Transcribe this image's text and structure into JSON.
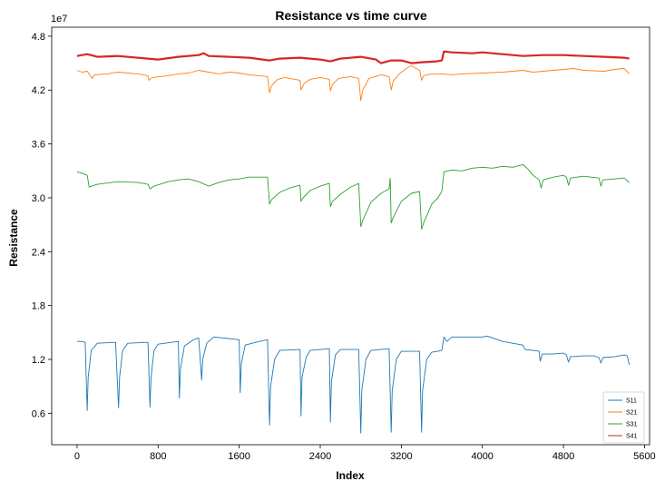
{
  "chart_data": {
    "type": "line",
    "title": "Resistance vs time curve",
    "xlabel": "Index",
    "ylabel": "Resistance",
    "y_offset_label": "1e7",
    "y_scale_factor": 10000000,
    "xlim": [
      -250,
      5650
    ],
    "ylim": [
      0.25,
      4.9
    ],
    "xticks": [
      0,
      800,
      1600,
      2400,
      3200,
      4000,
      4800,
      5600
    ],
    "yticks": [
      0.6,
      1.2,
      1.8,
      2.4,
      3.0,
      3.6,
      4.2,
      4.8
    ],
    "ytick_labels": [
      "0.6",
      "1.2",
      "1.8",
      "2.4",
      "3.0",
      "3.6",
      "4.2",
      "4.8"
    ],
    "grid": false,
    "legend_position": "bottom-right",
    "series": [
      {
        "name": "S11",
        "color": "#1f77b4",
        "linewidth": 0.9,
        "points": [
          [
            0,
            1.4
          ],
          [
            40,
            1.4
          ],
          [
            80,
            1.39
          ],
          [
            100,
            0.63
          ],
          [
            110,
            1.0
          ],
          [
            140,
            1.3
          ],
          [
            200,
            1.38
          ],
          [
            380,
            1.39
          ],
          [
            410,
            0.66
          ],
          [
            420,
            1.0
          ],
          [
            450,
            1.3
          ],
          [
            500,
            1.38
          ],
          [
            700,
            1.39
          ],
          [
            720,
            0.67
          ],
          [
            730,
            1.0
          ],
          [
            760,
            1.3
          ],
          [
            800,
            1.37
          ],
          [
            1000,
            1.4
          ],
          [
            1010,
            0.77
          ],
          [
            1020,
            1.1
          ],
          [
            1060,
            1.35
          ],
          [
            1150,
            1.42
          ],
          [
            1200,
            1.44
          ],
          [
            1230,
            0.97
          ],
          [
            1240,
            1.2
          ],
          [
            1280,
            1.38
          ],
          [
            1350,
            1.45
          ],
          [
            1600,
            1.42
          ],
          [
            1610,
            0.83
          ],
          [
            1620,
            1.15
          ],
          [
            1660,
            1.36
          ],
          [
            1800,
            1.4
          ],
          [
            1880,
            1.42
          ],
          [
            1900,
            0.47
          ],
          [
            1910,
            0.9
          ],
          [
            1950,
            1.2
          ],
          [
            2000,
            1.3
          ],
          [
            2200,
            1.31
          ],
          [
            2210,
            0.57
          ],
          [
            2220,
            1.0
          ],
          [
            2260,
            1.22
          ],
          [
            2300,
            1.3
          ],
          [
            2490,
            1.32
          ],
          [
            2500,
            0.5
          ],
          [
            2510,
            0.95
          ],
          [
            2550,
            1.25
          ],
          [
            2600,
            1.31
          ],
          [
            2780,
            1.31
          ],
          [
            2800,
            0.38
          ],
          [
            2810,
            0.85
          ],
          [
            2850,
            1.2
          ],
          [
            2900,
            1.3
          ],
          [
            3080,
            1.32
          ],
          [
            3100,
            0.39
          ],
          [
            3110,
            0.85
          ],
          [
            3150,
            1.2
          ],
          [
            3200,
            1.29
          ],
          [
            3380,
            1.29
          ],
          [
            3400,
            0.39
          ],
          [
            3410,
            0.85
          ],
          [
            3450,
            1.2
          ],
          [
            3500,
            1.28
          ],
          [
            3560,
            1.29
          ],
          [
            3600,
            1.3
          ],
          [
            3620,
            1.45
          ],
          [
            3650,
            1.4
          ],
          [
            3700,
            1.45
          ],
          [
            4000,
            1.45
          ],
          [
            4050,
            1.46
          ],
          [
            4100,
            1.44
          ],
          [
            4200,
            1.4
          ],
          [
            4300,
            1.38
          ],
          [
            4400,
            1.36
          ],
          [
            4420,
            1.31
          ],
          [
            4500,
            1.3
          ],
          [
            4560,
            1.29
          ],
          [
            4570,
            1.18
          ],
          [
            4590,
            1.26
          ],
          [
            4700,
            1.26
          ],
          [
            4800,
            1.27
          ],
          [
            4830,
            1.25
          ],
          [
            4850,
            1.17
          ],
          [
            4870,
            1.23
          ],
          [
            5000,
            1.24
          ],
          [
            5100,
            1.24
          ],
          [
            5150,
            1.22
          ],
          [
            5170,
            1.16
          ],
          [
            5190,
            1.22
          ],
          [
            5300,
            1.23
          ],
          [
            5400,
            1.25
          ],
          [
            5430,
            1.24
          ],
          [
            5450,
            1.14
          ]
        ]
      },
      {
        "name": "S21",
        "color": "#ff7f0e",
        "linewidth": 0.9,
        "points": [
          [
            0,
            4.42
          ],
          [
            50,
            4.4
          ],
          [
            100,
            4.41
          ],
          [
            150,
            4.33
          ],
          [
            170,
            4.37
          ],
          [
            300,
            4.38
          ],
          [
            400,
            4.4
          ],
          [
            600,
            4.38
          ],
          [
            700,
            4.36
          ],
          [
            710,
            4.31
          ],
          [
            740,
            4.34
          ],
          [
            900,
            4.36
          ],
          [
            1000,
            4.38
          ],
          [
            1100,
            4.39
          ],
          [
            1200,
            4.42
          ],
          [
            1300,
            4.4
          ],
          [
            1400,
            4.38
          ],
          [
            1500,
            4.4
          ],
          [
            1600,
            4.39
          ],
          [
            1700,
            4.37
          ],
          [
            1800,
            4.36
          ],
          [
            1880,
            4.35
          ],
          [
            1900,
            4.17
          ],
          [
            1920,
            4.25
          ],
          [
            1980,
            4.32
          ],
          [
            2050,
            4.34
          ],
          [
            2200,
            4.31
          ],
          [
            2210,
            4.2
          ],
          [
            2240,
            4.27
          ],
          [
            2300,
            4.32
          ],
          [
            2400,
            4.34
          ],
          [
            2490,
            4.32
          ],
          [
            2500,
            4.19
          ],
          [
            2520,
            4.26
          ],
          [
            2580,
            4.33
          ],
          [
            2700,
            4.35
          ],
          [
            2780,
            4.33
          ],
          [
            2800,
            4.08
          ],
          [
            2820,
            4.2
          ],
          [
            2880,
            4.33
          ],
          [
            3000,
            4.37
          ],
          [
            3080,
            4.35
          ],
          [
            3100,
            4.2
          ],
          [
            3120,
            4.3
          ],
          [
            3180,
            4.38
          ],
          [
            3260,
            4.45
          ],
          [
            3300,
            4.47
          ],
          [
            3380,
            4.42
          ],
          [
            3400,
            4.31
          ],
          [
            3420,
            4.36
          ],
          [
            3500,
            4.38
          ],
          [
            3600,
            4.38
          ],
          [
            3700,
            4.37
          ],
          [
            3800,
            4.38
          ],
          [
            4000,
            4.39
          ],
          [
            4200,
            4.4
          ],
          [
            4300,
            4.41
          ],
          [
            4400,
            4.42
          ],
          [
            4500,
            4.4
          ],
          [
            4600,
            4.41
          ],
          [
            4700,
            4.42
          ],
          [
            4800,
            4.43
          ],
          [
            4900,
            4.44
          ],
          [
            5000,
            4.42
          ],
          [
            5200,
            4.41
          ],
          [
            5300,
            4.43
          ],
          [
            5400,
            4.44
          ],
          [
            5450,
            4.38
          ]
        ]
      },
      {
        "name": "S31",
        "color": "#2ca02c",
        "linewidth": 0.9,
        "points": [
          [
            0,
            3.29
          ],
          [
            60,
            3.27
          ],
          [
            100,
            3.25
          ],
          [
            120,
            3.12
          ],
          [
            200,
            3.15
          ],
          [
            400,
            3.18
          ],
          [
            600,
            3.17
          ],
          [
            700,
            3.15
          ],
          [
            720,
            3.1
          ],
          [
            760,
            3.13
          ],
          [
            900,
            3.18
          ],
          [
            1000,
            3.2
          ],
          [
            1100,
            3.21
          ],
          [
            1200,
            3.18
          ],
          [
            1300,
            3.13
          ],
          [
            1400,
            3.17
          ],
          [
            1500,
            3.2
          ],
          [
            1600,
            3.21
          ],
          [
            1700,
            3.23
          ],
          [
            1880,
            3.23
          ],
          [
            1900,
            2.93
          ],
          [
            1920,
            2.98
          ],
          [
            2000,
            3.06
          ],
          [
            2100,
            3.11
          ],
          [
            2200,
            3.14
          ],
          [
            2210,
            2.96
          ],
          [
            2230,
            3.0
          ],
          [
            2300,
            3.08
          ],
          [
            2400,
            3.13
          ],
          [
            2490,
            3.16
          ],
          [
            2500,
            2.9
          ],
          [
            2520,
            2.96
          ],
          [
            2600,
            3.04
          ],
          [
            2700,
            3.12
          ],
          [
            2780,
            3.16
          ],
          [
            2800,
            2.68
          ],
          [
            2820,
            2.75
          ],
          [
            2900,
            2.95
          ],
          [
            3000,
            3.05
          ],
          [
            3080,
            3.1
          ],
          [
            3090,
            3.22
          ],
          [
            3100,
            2.72
          ],
          [
            3120,
            2.78
          ],
          [
            3200,
            2.96
          ],
          [
            3300,
            3.05
          ],
          [
            3380,
            3.07
          ],
          [
            3400,
            2.65
          ],
          [
            3420,
            2.72
          ],
          [
            3500,
            2.93
          ],
          [
            3560,
            3.0
          ],
          [
            3600,
            3.07
          ],
          [
            3620,
            3.29
          ],
          [
            3700,
            3.31
          ],
          [
            3800,
            3.3
          ],
          [
            3900,
            3.33
          ],
          [
            4000,
            3.34
          ],
          [
            4100,
            3.33
          ],
          [
            4200,
            3.35
          ],
          [
            4300,
            3.34
          ],
          [
            4400,
            3.37
          ],
          [
            4450,
            3.32
          ],
          [
            4500,
            3.25
          ],
          [
            4560,
            3.2
          ],
          [
            4580,
            3.11
          ],
          [
            4600,
            3.2
          ],
          [
            4700,
            3.23
          ],
          [
            4800,
            3.25
          ],
          [
            4830,
            3.23
          ],
          [
            4850,
            3.14
          ],
          [
            4870,
            3.22
          ],
          [
            5000,
            3.24
          ],
          [
            5150,
            3.22
          ],
          [
            5170,
            3.13
          ],
          [
            5190,
            3.2
          ],
          [
            5300,
            3.21
          ],
          [
            5400,
            3.22
          ],
          [
            5450,
            3.17
          ]
        ]
      },
      {
        "name": "S41",
        "color": "#d62728",
        "linewidth": 2.2,
        "points": [
          [
            0,
            4.58
          ],
          [
            100,
            4.6
          ],
          [
            200,
            4.57
          ],
          [
            400,
            4.58
          ],
          [
            600,
            4.56
          ],
          [
            800,
            4.54
          ],
          [
            1000,
            4.57
          ],
          [
            1200,
            4.59
          ],
          [
            1250,
            4.61
          ],
          [
            1300,
            4.58
          ],
          [
            1500,
            4.57
          ],
          [
            1700,
            4.56
          ],
          [
            1900,
            4.53
          ],
          [
            2000,
            4.55
          ],
          [
            2200,
            4.56
          ],
          [
            2400,
            4.54
          ],
          [
            2500,
            4.52
          ],
          [
            2600,
            4.55
          ],
          [
            2800,
            4.57
          ],
          [
            2950,
            4.54
          ],
          [
            3000,
            4.5
          ],
          [
            3100,
            4.53
          ],
          [
            3200,
            4.53
          ],
          [
            3300,
            4.5
          ],
          [
            3400,
            4.51
          ],
          [
            3550,
            4.52
          ],
          [
            3600,
            4.53
          ],
          [
            3620,
            4.63
          ],
          [
            3700,
            4.62
          ],
          [
            3900,
            4.61
          ],
          [
            4000,
            4.62
          ],
          [
            4200,
            4.6
          ],
          [
            4400,
            4.58
          ],
          [
            4600,
            4.59
          ],
          [
            4800,
            4.59
          ],
          [
            5000,
            4.58
          ],
          [
            5200,
            4.57
          ],
          [
            5400,
            4.56
          ],
          [
            5450,
            4.55
          ]
        ]
      }
    ]
  }
}
